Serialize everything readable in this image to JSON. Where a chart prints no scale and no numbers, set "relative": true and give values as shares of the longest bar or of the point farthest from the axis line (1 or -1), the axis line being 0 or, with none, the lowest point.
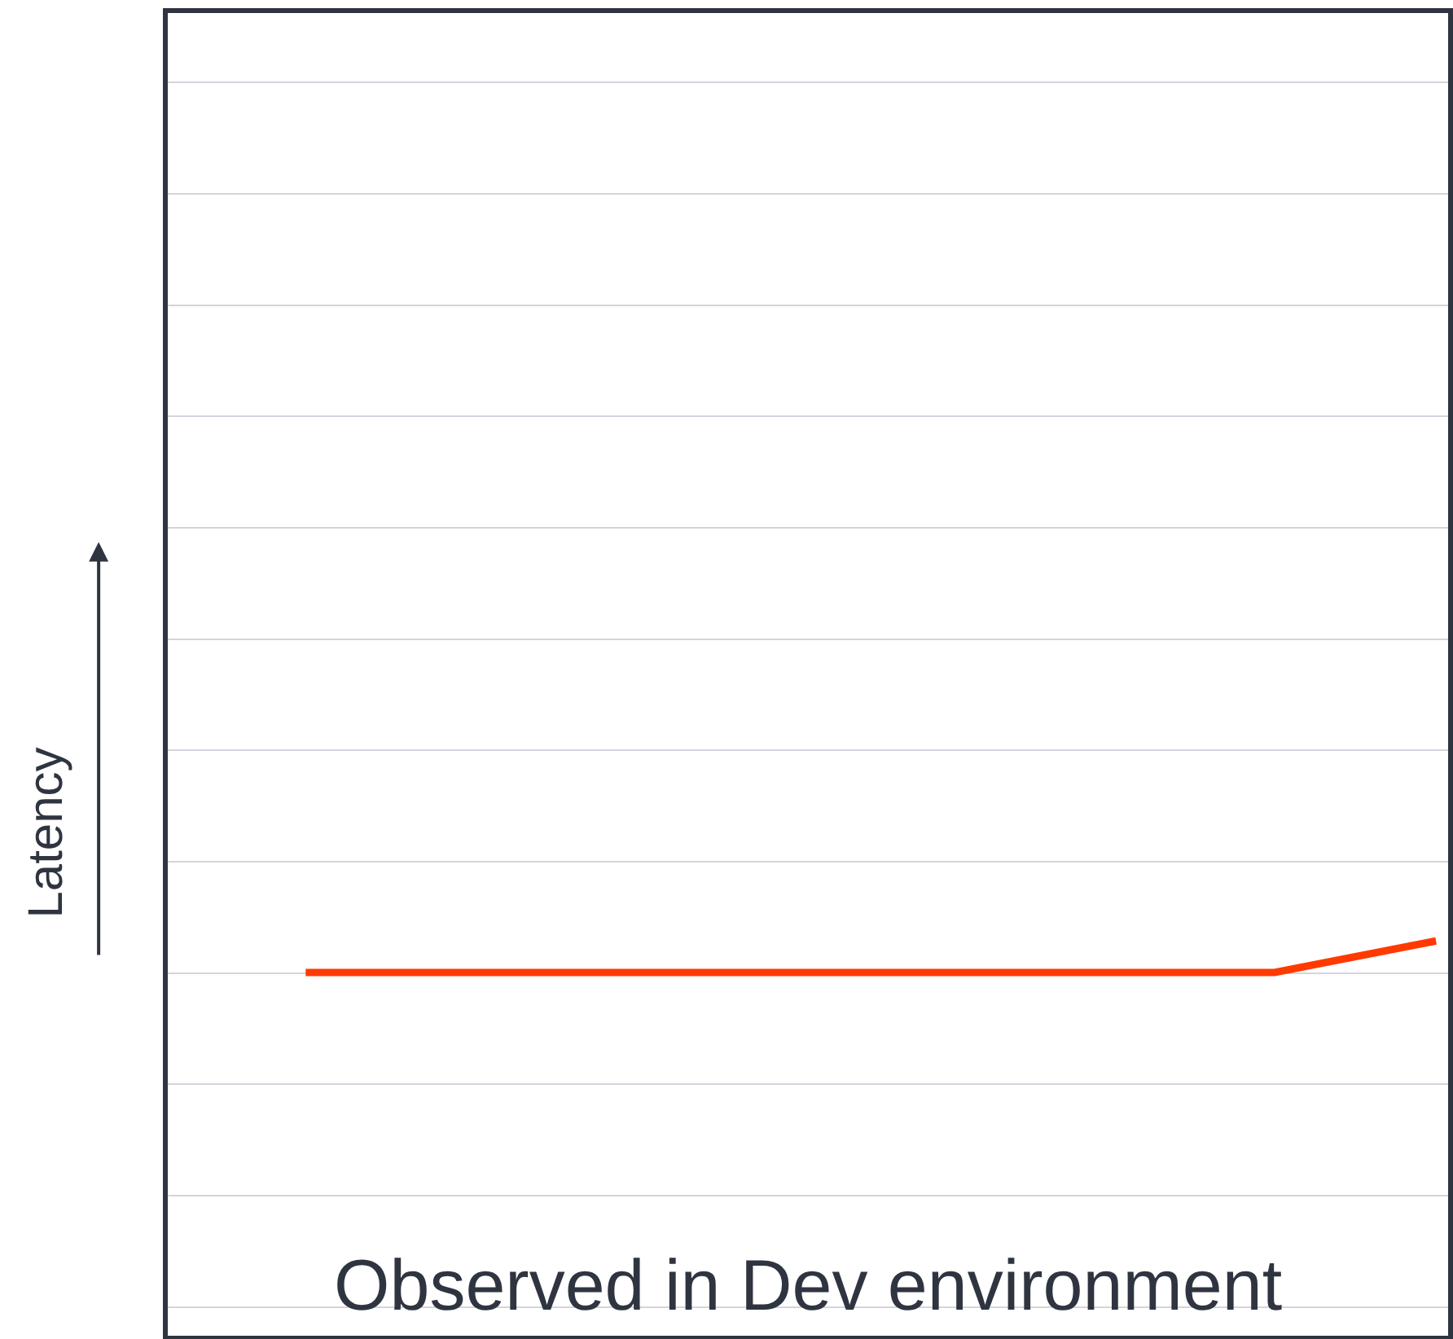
{
  "chart_data": {
    "type": "line",
    "title": "Observed in Dev environment",
    "ylabel": "Latency",
    "relative": true,
    "categories": [
      null,
      null,
      null,
      null,
      null,
      null,
      null,
      null
    ],
    "series": [
      {
        "color": "#ff3a00",
        "values": [
          0.92,
          0.92,
          0.92,
          0.92,
          0.92,
          0.92,
          0.92,
          1
        ]
      }
    ],
    "grid": "y",
    "legend": false,
    "marker": "none",
    "line_style": "solid"
  }
}
